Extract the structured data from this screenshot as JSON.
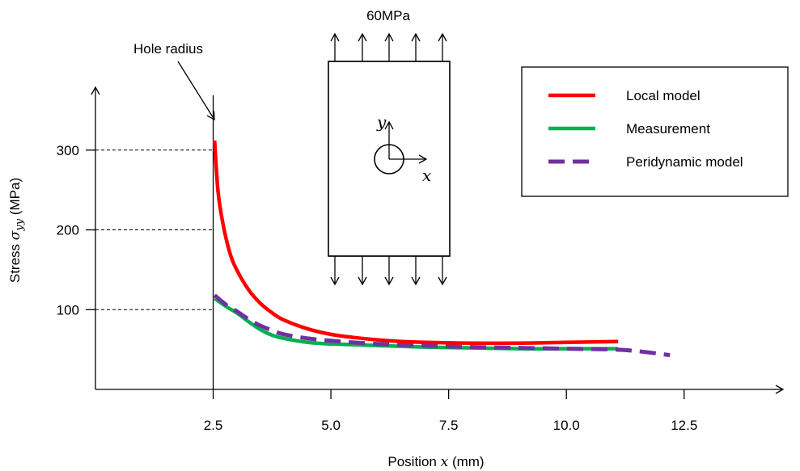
{
  "chart_data": {
    "type": "line",
    "title": "",
    "xlabel": "Position",
    "xlabel_symbol": "x",
    "xlabel_unit": "(mm)",
    "ylabel": "Stress",
    "ylabel_symbol": "σ",
    "ylabel_subscript": "yy",
    "ylabel_unit": "(MPa)",
    "x_ticks": [
      "2.5",
      "5.0",
      "7.5",
      "10.0",
      "12.5"
    ],
    "x_tick_values": [
      2.5,
      5.0,
      7.5,
      10.0,
      12.5
    ],
    "y_ticks": [
      "100",
      "200",
      "300"
    ],
    "y_tick_values": [
      100,
      200,
      300
    ],
    "xlim": [
      0,
      14.6
    ],
    "ylim": [
      0,
      395
    ],
    "hole_radius_x": 2.5,
    "series": [
      {
        "name": "Local model",
        "color": "#ff0000",
        "style": "solid",
        "x": [
          2.53,
          2.6,
          2.7,
          2.85,
          3.0,
          3.25,
          3.5,
          3.75,
          4.0,
          4.5,
          5.0,
          5.5,
          6.0,
          6.5,
          7.0,
          8.0,
          9.0,
          10.0,
          11.1
        ],
        "y": [
          312,
          250,
          210,
          172,
          150,
          125,
          108,
          96,
          87,
          76,
          69,
          65,
          62,
          60,
          59,
          58,
          58,
          59,
          60
        ]
      },
      {
        "name": "Measurement",
        "color": "#00b050",
        "style": "solid",
        "x": [
          2.53,
          2.8,
          3.0,
          3.25,
          3.5,
          3.75,
          4.0,
          4.5,
          5.0,
          6.0,
          7.0,
          8.0,
          9.0,
          10.0,
          11.1
        ],
        "y": [
          114,
          103,
          96,
          85,
          75,
          68,
          64,
          59,
          57,
          55,
          53,
          52,
          51,
          51,
          51
        ]
      },
      {
        "name": "Peridynamic model",
        "color": "#7030a0",
        "style": "dashed",
        "x": [
          2.53,
          2.8,
          3.0,
          3.25,
          3.5,
          3.75,
          4.0,
          4.5,
          5.0,
          6.0,
          7.0,
          8.0,
          9.0,
          10.0,
          11.0,
          11.5,
          12.2
        ],
        "y": [
          118,
          105,
          98,
          88,
          80,
          74,
          69,
          64,
          61,
          57,
          55,
          53,
          52,
          51,
          50,
          48,
          43
        ]
      }
    ],
    "legend_position": "top-right",
    "grid": false
  },
  "annotations": {
    "hole_radius": "Hole radius",
    "load": "60MPa",
    "axis_y": "y",
    "axis_x": "x"
  }
}
